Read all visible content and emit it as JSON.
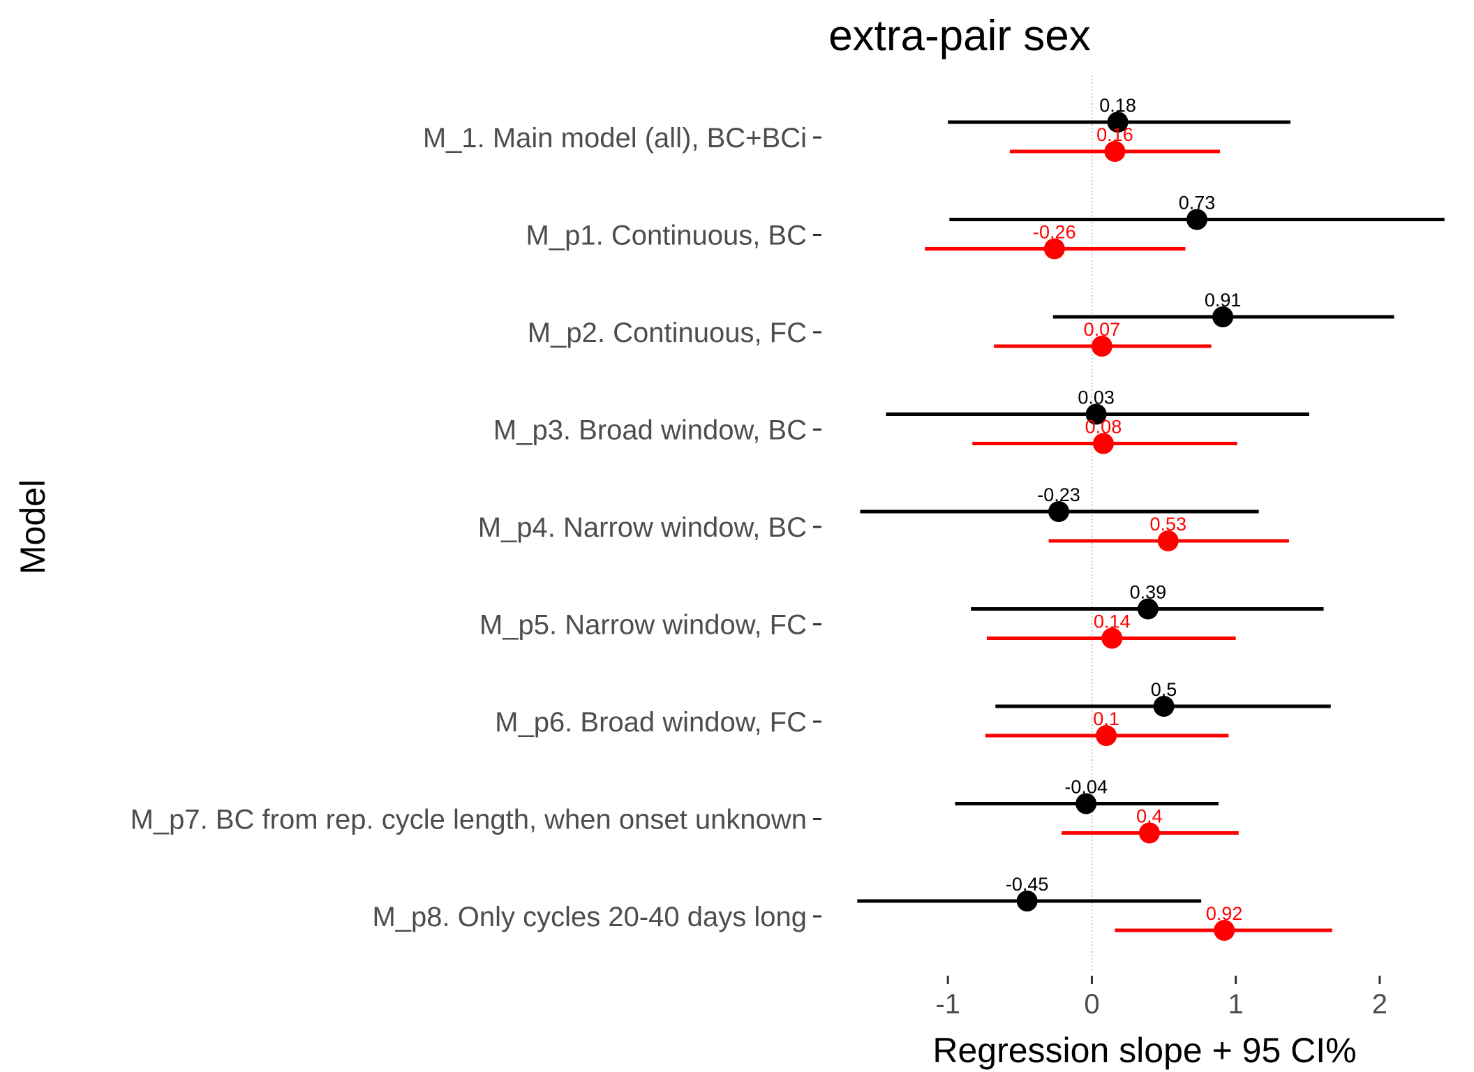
{
  "chart_data": {
    "type": "forest",
    "title": "extra-pair sex",
    "xlabel": "Regression slope + 95 CI%",
    "ylabel": "Model",
    "xlim": [
      -1.68,
      2.5
    ],
    "xticks": [
      -1,
      0,
      1,
      2
    ],
    "xtick_labels": [
      "-1",
      "0",
      "1",
      "2"
    ],
    "reference_line": 0,
    "grid": false,
    "legend": "none",
    "series_colors": [
      "#000000",
      "#ff0000"
    ],
    "models": [
      {
        "label": "M_1. Main model (all), BC+BCi",
        "estimates": [
          {
            "value": 0.18,
            "label": "0.18",
            "low": -1.0,
            "high": 1.38
          },
          {
            "value": 0.16,
            "label": "0.16",
            "low": -0.57,
            "high": 0.89
          }
        ]
      },
      {
        "label": "M_p1. Continuous, BC",
        "estimates": [
          {
            "value": 0.73,
            "label": "0.73",
            "low": -0.99,
            "high": 2.45
          },
          {
            "value": -0.26,
            "label": "-0.26",
            "low": -1.16,
            "high": 0.65
          }
        ]
      },
      {
        "label": "M_p2. Continuous, FC",
        "estimates": [
          {
            "value": 0.91,
            "label": "0.91",
            "low": -0.27,
            "high": 2.1
          },
          {
            "value": 0.07,
            "label": "0.07",
            "low": -0.68,
            "high": 0.83
          }
        ]
      },
      {
        "label": "M_p3. Broad window, BC",
        "estimates": [
          {
            "value": 0.03,
            "label": "0.03",
            "low": -1.43,
            "high": 1.51
          },
          {
            "value": 0.08,
            "label": "0.08",
            "low": -0.83,
            "high": 1.01
          }
        ]
      },
      {
        "label": "M_p4. Narrow window, BC",
        "estimates": [
          {
            "value": -0.23,
            "label": "-0.23",
            "low": -1.61,
            "high": 1.16
          },
          {
            "value": 0.53,
            "label": "0.53",
            "low": -0.3,
            "high": 1.37
          }
        ]
      },
      {
        "label": "M_p5. Narrow window, FC",
        "estimates": [
          {
            "value": 0.39,
            "label": "0.39",
            "low": -0.84,
            "high": 1.61
          },
          {
            "value": 0.14,
            "label": "0.14",
            "low": -0.73,
            "high": 1.0
          }
        ]
      },
      {
        "label": "M_p6. Broad window, FC",
        "estimates": [
          {
            "value": 0.5,
            "label": "0.5",
            "low": -0.67,
            "high": 1.66
          },
          {
            "value": 0.1,
            "label": "0.1",
            "low": -0.74,
            "high": 0.95
          }
        ]
      },
      {
        "label": "M_p7. BC from rep. cycle length, when onset unknown",
        "estimates": [
          {
            "value": -0.04,
            "label": "-0.04",
            "low": -0.95,
            "high": 0.88
          },
          {
            "value": 0.4,
            "label": "0.4",
            "low": -0.21,
            "high": 1.02
          }
        ]
      },
      {
        "label": "M_p8. Only cycles 20-40 days long",
        "estimates": [
          {
            "value": -0.45,
            "label": "-0.45",
            "low": -1.63,
            "high": 0.76
          },
          {
            "value": 0.92,
            "label": "0.92",
            "low": 0.16,
            "high": 1.67
          }
        ]
      }
    ]
  }
}
